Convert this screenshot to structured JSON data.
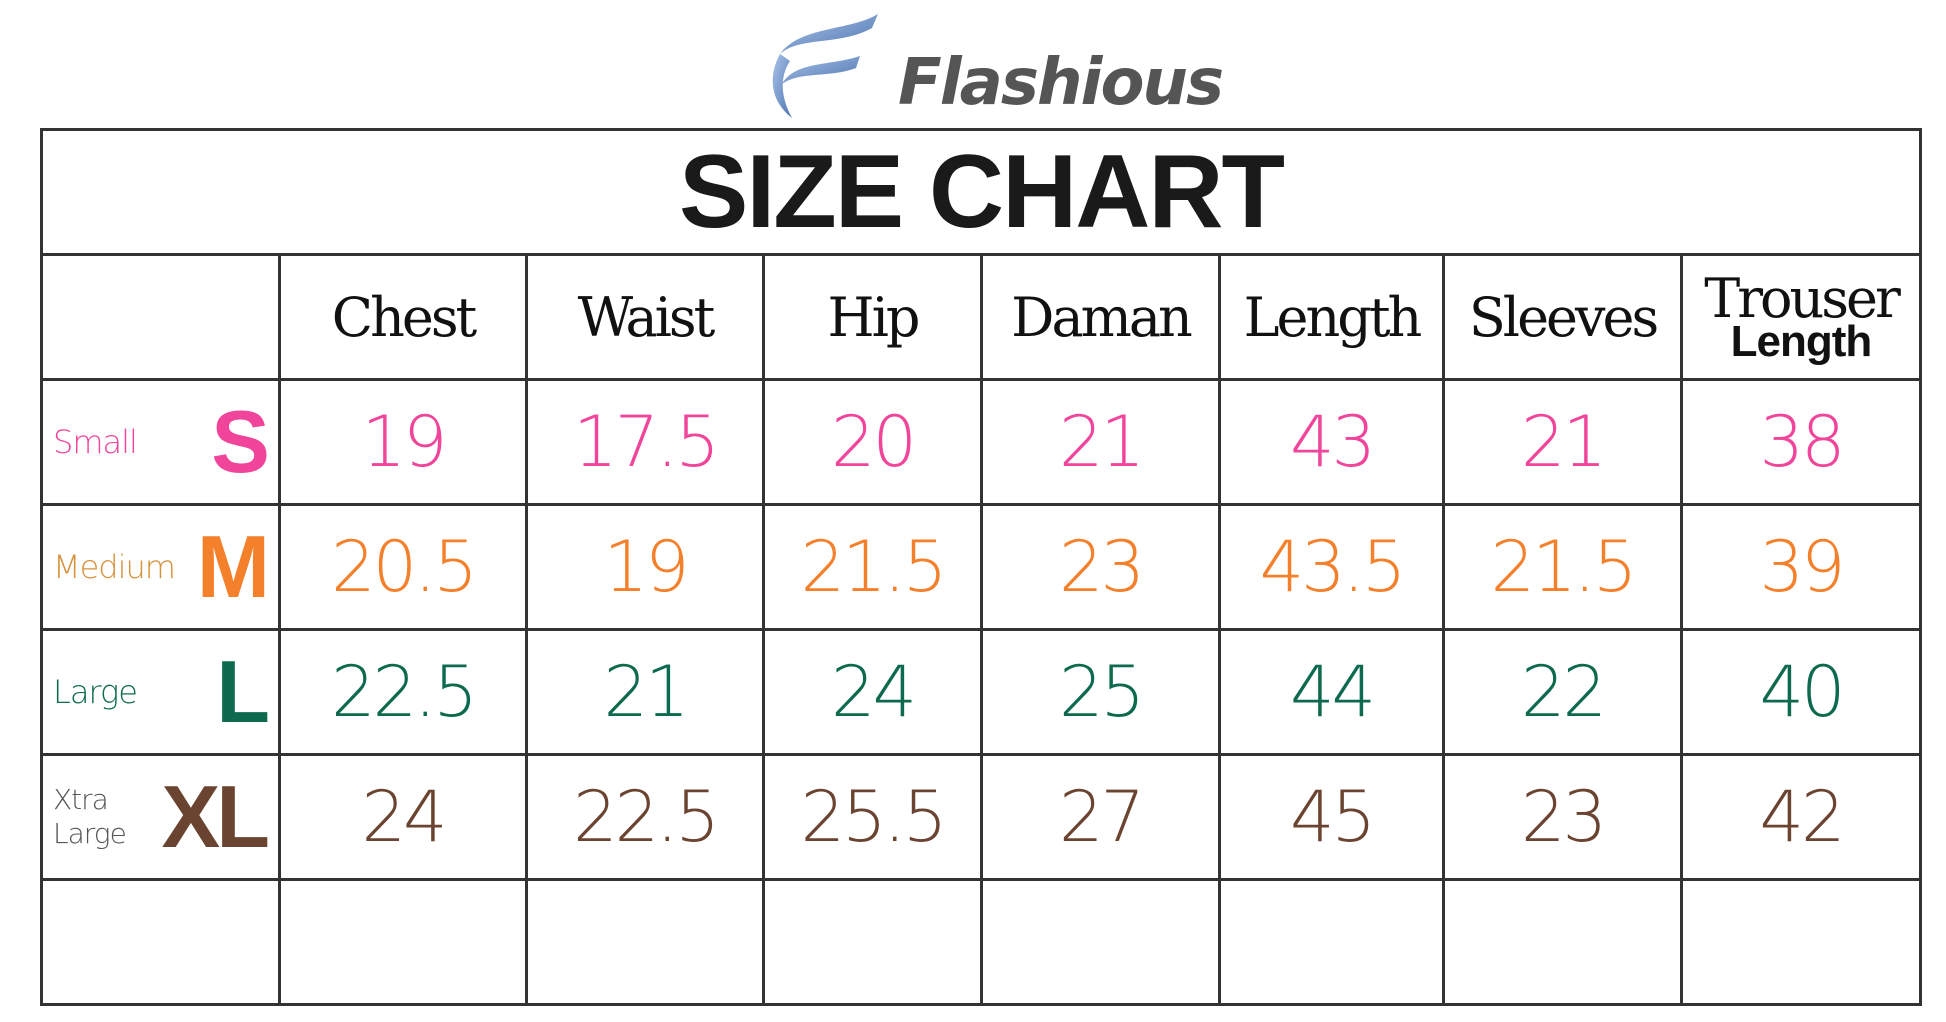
{
  "brand": {
    "name": "Flashious",
    "logo_icon": "swoosh-f-logo",
    "accent": "#6f93c8"
  },
  "title": "SIZE CHART",
  "columns": [
    {
      "label": "Chest"
    },
    {
      "label": "Waist"
    },
    {
      "label": "Hip"
    },
    {
      "label": "Daman"
    },
    {
      "label": "Length"
    },
    {
      "label": "Sleeves"
    },
    {
      "label": "Trouser",
      "sub": "Length"
    }
  ],
  "rows": [
    {
      "word": "Small",
      "letter": "S",
      "color": "#f0459a",
      "values": [
        "19",
        "17.5",
        "20",
        "21",
        "43",
        "21",
        "38"
      ]
    },
    {
      "word": "Medium",
      "letter": "M",
      "color": "#f4802c",
      "word_color": "#d6913a",
      "values": [
        "20.5",
        "19",
        "21.5",
        "23",
        "43.5",
        "21.5",
        "39"
      ]
    },
    {
      "word": "Large",
      "letter": "L",
      "color": "#0e6a4e",
      "values": [
        "22.5",
        "21",
        "24",
        "25",
        "44",
        "22",
        "40"
      ]
    },
    {
      "word": "Xtra",
      "word2": "Large",
      "letter": "XL",
      "color": "#6b4431",
      "word_color": "#555555",
      "values": [
        "24",
        "22.5",
        "25.5",
        "27",
        "45",
        "23",
        "42"
      ]
    }
  ]
}
